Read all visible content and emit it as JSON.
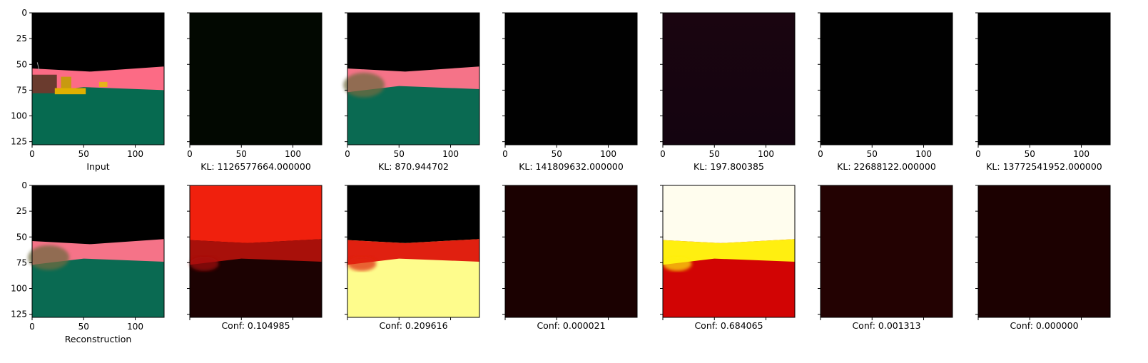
{
  "chart_data": {
    "type": "image-grid",
    "image_axis_range": [
      0,
      128
    ],
    "tick_labels_y": [
      "0",
      "25",
      "50",
      "75",
      "100",
      "125"
    ],
    "tick_labels_x": [
      "0",
      "50",
      "100"
    ],
    "rows": [
      {
        "panels": [
          {
            "label": "Input",
            "kind": "input_scene"
          },
          {
            "label": "KL: 1126577664.000000",
            "kind": "dark",
            "color": "#020801"
          },
          {
            "label": "KL: 870.944702",
            "kind": "recon_scene"
          },
          {
            "label": "KL: 141809632.000000",
            "kind": "dark",
            "color": "#010101"
          },
          {
            "label": "KL: 197.800385",
            "kind": "dark_gradient",
            "color": "#1a0510",
            "color2": "#140410"
          },
          {
            "label": "KL: 22688122.000000",
            "kind": "dark",
            "color": "#010101"
          },
          {
            "label": "KL: 13772541952.000000",
            "kind": "dark",
            "color": "#010101"
          }
        ]
      },
      {
        "panels": [
          {
            "label": "Reconstruction",
            "kind": "recon_scene"
          },
          {
            "label": "Conf: 0.104985",
            "kind": "heat",
            "sky": "#f0200d",
            "band": "#a8100a",
            "ground": "#1c0202"
          },
          {
            "label": "Conf: 0.209616",
            "kind": "heat",
            "sky": "#000000",
            "band": "#e02010",
            "ground": "#fefc8c"
          },
          {
            "label": "Conf: 0.000021",
            "kind": "dark",
            "color": "#1b0101"
          },
          {
            "label": "Conf: 0.684065",
            "kind": "heat",
            "sky": "#fffdee",
            "band": "#ffef10",
            "ground": "#d20404"
          },
          {
            "label": "Conf: 0.001313",
            "kind": "dark",
            "color": "#230202"
          },
          {
            "label": "Conf: 0.000000",
            "kind": "dark",
            "color": "#1c0101"
          }
        ]
      }
    ]
  }
}
